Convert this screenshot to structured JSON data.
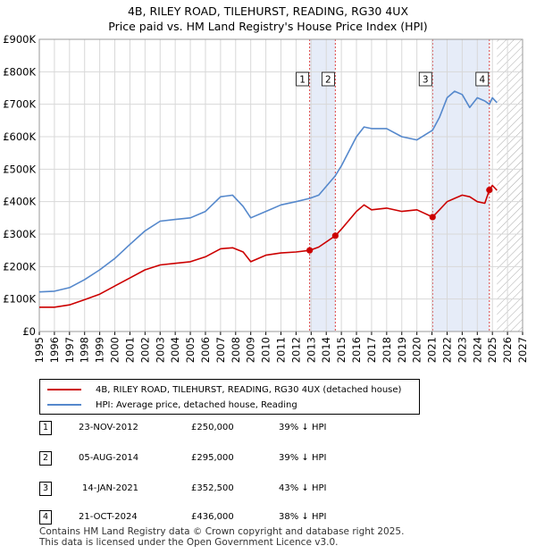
{
  "title_line1": "4B, RILEY ROAD, TILEHURST, READING, RG30 4UX",
  "title_line2": "Price paid vs. HM Land Registry's House Price Index (HPI)",
  "legend": {
    "property": "4B, RILEY ROAD, TILEHURST, READING, RG30 4UX (detached house)",
    "hpi": "HPI: Average price, detached house, Reading"
  },
  "colors": {
    "property": "#cc0000",
    "hpi": "#5588cc",
    "shade": "#dde6f5"
  },
  "sales": [
    {
      "num": "1",
      "date": "23-NOV-2012",
      "price": "£250,000",
      "pct": "39% ↓ HPI"
    },
    {
      "num": "2",
      "date": "05-AUG-2014",
      "price": "£295,000",
      "pct": "39% ↓ HPI"
    },
    {
      "num": "3",
      "date": "14-JAN-2021",
      "price": "£352,500",
      "pct": "43% ↓ HPI"
    },
    {
      "num": "4",
      "date": "21-OCT-2024",
      "price": "£436,000",
      "pct": "38% ↓ HPI"
    }
  ],
  "footer_line1": "Contains HM Land Registry data © Crown copyright and database right 2025.",
  "footer_line2": "This data is licensed under the Open Government Licence v3.0.",
  "chart_data": {
    "type": "line",
    "title": "4B, RILEY ROAD, TILEHURST, READING, RG30 4UX",
    "subtitle": "Price paid vs. HM Land Registry's House Price Index (HPI)",
    "xlabel": "",
    "ylabel": "",
    "xlim": [
      1995,
      2027
    ],
    "ylim": [
      0,
      900000
    ],
    "x_ticks": [
      "1995",
      "1996",
      "1997",
      "1998",
      "1999",
      "2000",
      "2001",
      "2002",
      "2003",
      "2004",
      "2005",
      "2006",
      "2007",
      "2008",
      "2009",
      "2010",
      "2011",
      "2012",
      "2013",
      "2014",
      "2015",
      "2016",
      "2017",
      "2018",
      "2019",
      "2020",
      "2021",
      "2022",
      "2023",
      "2024",
      "2025",
      "2026",
      "2027"
    ],
    "y_ticks": [
      {
        "value": 0,
        "label": "£0"
      },
      {
        "value": 100000,
        "label": "£100K"
      },
      {
        "value": 200000,
        "label": "£200K"
      },
      {
        "value": 300000,
        "label": "£300K"
      },
      {
        "value": 400000,
        "label": "£400K"
      },
      {
        "value": 500000,
        "label": "£500K"
      },
      {
        "value": 600000,
        "label": "£600K"
      },
      {
        "value": 700000,
        "label": "£700K"
      },
      {
        "value": 800000,
        "label": "£800K"
      },
      {
        "value": 900000,
        "label": "£900K"
      }
    ],
    "grid": true,
    "legend_position": "below-chart",
    "shaded_periods": [
      [
        2012.9,
        2014.6
      ],
      [
        2021.04,
        2024.8
      ]
    ],
    "hatched_from": 2025.3,
    "series": [
      {
        "name": "4B, RILEY ROAD, TILEHURST, READING, RG30 4UX (detached house)",
        "x": [
          1995,
          1996,
          1997,
          1998,
          1999,
          2000,
          2001,
          2002,
          2003,
          2004,
          2005,
          2006,
          2007,
          2007.8,
          2008.5,
          2009,
          2010,
          2011,
          2012,
          2012.9,
          2013.5,
          2014.6,
          2015,
          2016,
          2016.5,
          2017,
          2018,
          2019,
          2020,
          2021.04,
          2021.5,
          2022,
          2022.5,
          2023,
          2023.5,
          2024,
          2024.5,
          2024.8,
          2025,
          2025.3
        ],
        "values": [
          75000,
          75000,
          82000,
          98000,
          115000,
          140000,
          165000,
          190000,
          205000,
          210000,
          215000,
          230000,
          255000,
          258000,
          245000,
          215000,
          235000,
          242000,
          245000,
          250000,
          260000,
          295000,
          315000,
          370000,
          390000,
          375000,
          380000,
          370000,
          375000,
          352500,
          375000,
          400000,
          410000,
          420000,
          415000,
          400000,
          395000,
          436000,
          450000,
          435000
        ]
      },
      {
        "name": "HPI: Average price, detached house, Reading",
        "x": [
          1995,
          1996,
          1997,
          1998,
          1999,
          2000,
          2001,
          2002,
          2003,
          2004,
          2005,
          2006,
          2007,
          2007.8,
          2008.5,
          2009,
          2010,
          2011,
          2012,
          2012.9,
          2013.5,
          2014.6,
          2015,
          2016,
          2016.5,
          2017,
          2018,
          2019,
          2020,
          2021.04,
          2021.5,
          2022,
          2022.5,
          2023,
          2023.5,
          2024,
          2024.5,
          2024.8,
          2025,
          2025.3
        ],
        "values": [
          122000,
          124000,
          135000,
          160000,
          190000,
          225000,
          268000,
          310000,
          340000,
          345000,
          350000,
          370000,
          415000,
          420000,
          385000,
          350000,
          370000,
          390000,
          400000,
          410000,
          420000,
          480000,
          510000,
          600000,
          630000,
          625000,
          625000,
          600000,
          590000,
          620000,
          660000,
          720000,
          740000,
          730000,
          690000,
          720000,
          710000,
          700000,
          720000,
          705000
        ]
      }
    ],
    "markers": [
      {
        "label": "1",
        "x": 2012.9,
        "y": 250000
      },
      {
        "label": "2",
        "x": 2014.6,
        "y": 295000
      },
      {
        "label": "3",
        "x": 2021.04,
        "y": 352500
      },
      {
        "label": "4",
        "x": 2024.8,
        "y": 436000
      }
    ]
  }
}
